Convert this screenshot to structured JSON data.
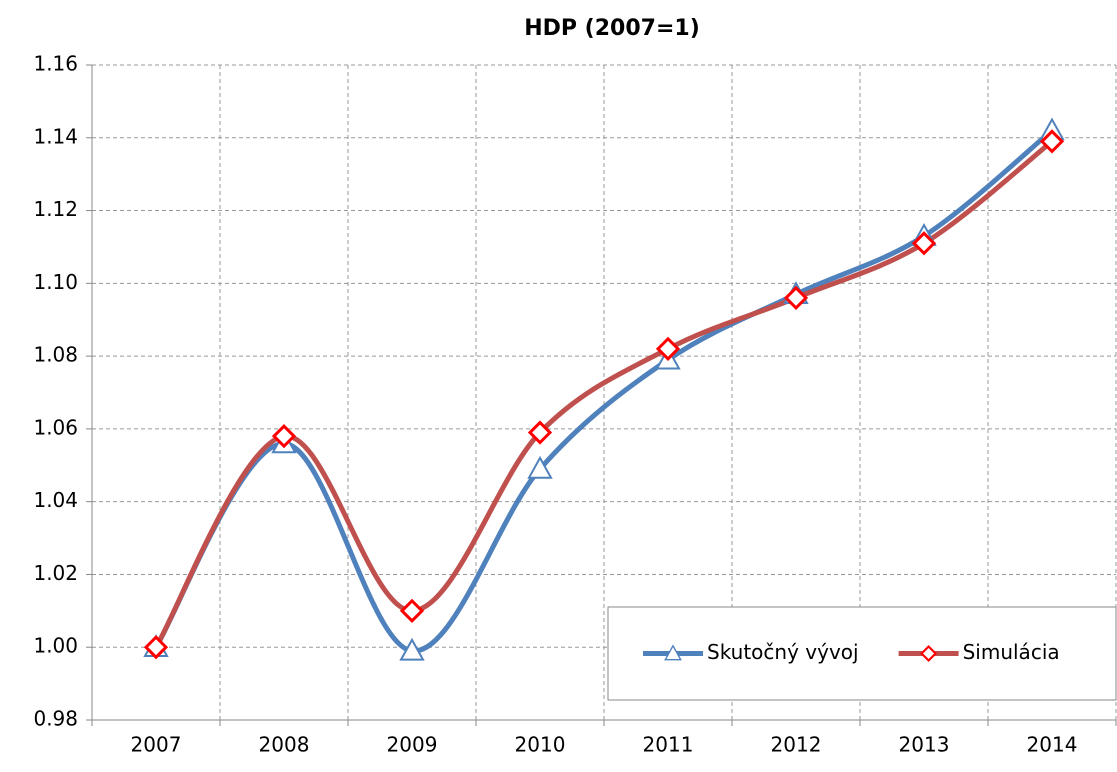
{
  "chart_data": {
    "type": "line",
    "title": "HDP (2007=1)",
    "categories": [
      "2007",
      "2008",
      "2009",
      "2010",
      "2011",
      "2012",
      "2013",
      "2014"
    ],
    "series": [
      {
        "name": "Skutočný vývoj",
        "color": "#4f81bd",
        "marker": "triangle",
        "values": [
          1.0,
          1.056,
          0.999,
          1.049,
          1.079,
          1.097,
          1.113,
          1.142
        ]
      },
      {
        "name": "Simulácia",
        "color": "#c0504d",
        "marker": "diamond",
        "marker_color": "#ff0000",
        "values": [
          1.0,
          1.058,
          1.01,
          1.059,
          1.082,
          1.096,
          1.111,
          1.139
        ]
      }
    ],
    "ylim": [
      0.98,
      1.16
    ],
    "yticks": [
      0.98,
      {
        "value": 1.0,
        "label": "1.00"
      },
      1.02,
      1.04,
      1.06,
      1.08,
      {
        "value": 1.1,
        "label": "1.10"
      },
      1.12,
      1.14,
      1.16
    ],
    "grid": true,
    "smooth": true,
    "legend": "bottom-right"
  }
}
